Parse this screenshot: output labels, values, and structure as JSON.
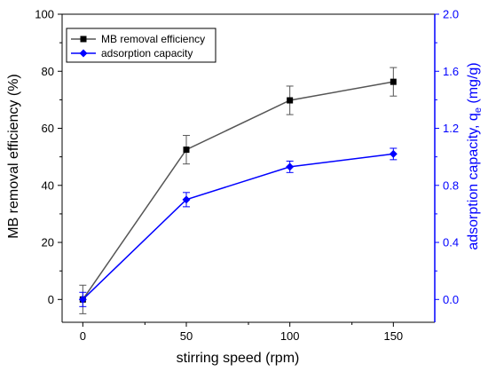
{
  "chart_data": {
    "type": "line",
    "x": [
      0,
      50,
      100,
      150
    ],
    "xlabel": "stirring speed (rpm)",
    "xticks": [
      "0",
      "50",
      "100",
      "150"
    ],
    "xlim": [
      -10,
      170
    ],
    "left_axis": {
      "label": "MB removal efficiency (%)",
      "ylim": [
        -8,
        100
      ],
      "ticks": [
        "0",
        "20",
        "40",
        "60",
        "80",
        "100"
      ]
    },
    "right_axis": {
      "label_main": "adsorption capacity, q",
      "label_sub": "e",
      "label_units": " (mg/g)",
      "ylim": [
        -0.16,
        2.0
      ],
      "ticks": [
        "0.0",
        "0.4",
        "0.8",
        "1.2",
        "1.6",
        "2.0"
      ]
    },
    "series": [
      {
        "name": "MB removal efficiency",
        "axis": "left",
        "values": [
          0,
          52.5,
          69.8,
          76.3
        ],
        "errors": [
          5.0,
          5.0,
          5.0,
          5.0
        ],
        "line_color": "#555555",
        "marker_color": "#000000",
        "marker": "square"
      },
      {
        "name": "adsorption capacity",
        "axis": "right",
        "values": [
          0.0,
          0.7,
          0.93,
          1.02
        ],
        "errors": [
          0.05,
          0.05,
          0.04,
          0.04
        ],
        "line_color": "#0000ff",
        "marker_color": "#0000ff",
        "marker": "diamond"
      }
    ],
    "legend": "top-left",
    "grid": false
  }
}
